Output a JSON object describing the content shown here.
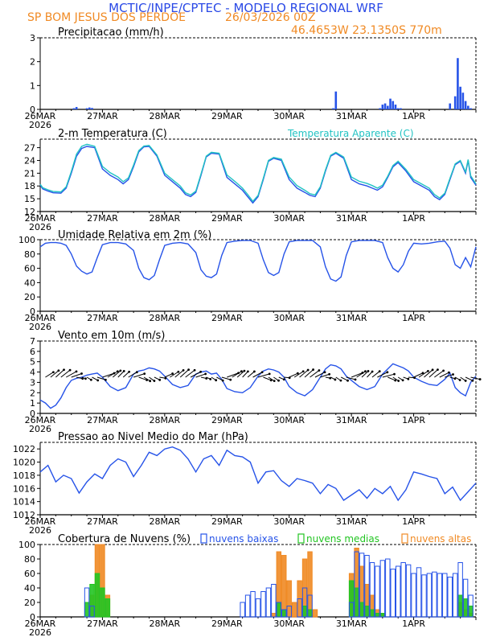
{
  "header": {
    "title": "MCTIC/INPE/CPTEC - MODELO REGIONAL WRF",
    "location": "SP BOM JESUS DOS PERDOE",
    "run": "26/03/2026 00Z",
    "coords": "46.4653W 23.1350S 770m"
  },
  "colors": {
    "title": "#2a49e6",
    "accent": "#f08a24",
    "series_main": "#2653e8",
    "series_cyan": "#22c3c3",
    "clouds_low": "#2653e8",
    "clouds_mid": "#22c422",
    "clouds_high": "#f08a24"
  },
  "x_axis": {
    "hours_total": 168,
    "labels": [
      {
        "hour": 0,
        "label": "26MAR",
        "year": "2026"
      },
      {
        "hour": 24,
        "label": "27MAR"
      },
      {
        "hour": 48,
        "label": "28MAR"
      },
      {
        "hour": 72,
        "label": "29MAR"
      },
      {
        "hour": 96,
        "label": "30MAR"
      },
      {
        "hour": 120,
        "label": "31MAR"
      },
      {
        "hour": 144,
        "label": "1APR"
      }
    ]
  },
  "chart_data": [
    {
      "id": "precip",
      "type": "bar",
      "title": "Precipitacao (mm/h)",
      "ylim": [
        0,
        3
      ],
      "yticks": [
        0,
        1,
        2,
        3
      ],
      "x": [
        13,
        14,
        18,
        19,
        20,
        113,
        114,
        131,
        132,
        133,
        134,
        135,
        136,
        137,
        138,
        139,
        158,
        160,
        161,
        162,
        163,
        164,
        165,
        166
      ],
      "values": [
        0.05,
        0.1,
        0.05,
        0.08,
        0.06,
        0.05,
        0.75,
        0.05,
        0.2,
        0.25,
        0.15,
        0.45,
        0.35,
        0.2,
        0.05,
        0.05,
        0.25,
        0.55,
        2.15,
        0.95,
        0.7,
        0.35,
        0.15,
        0.05
      ]
    },
    {
      "id": "temp",
      "type": "line",
      "title": "2-m Temperatura (C)",
      "legend": "Temperatura Aparente (C)",
      "ylim": [
        12,
        29
      ],
      "yticks": [
        12,
        15,
        18,
        21,
        24,
        27
      ],
      "x": [
        0,
        1,
        3,
        5,
        8,
        10,
        12,
        14,
        16,
        18,
        21,
        24,
        27,
        30,
        32,
        34,
        36,
        38,
        40,
        42,
        45,
        48,
        51,
        54,
        56,
        58,
        60,
        62,
        64,
        66,
        69,
        72,
        75,
        78,
        80,
        82,
        84,
        86,
        88,
        90,
        93,
        96,
        99,
        102,
        104,
        106,
        108,
        110,
        112,
        114,
        117,
        120,
        123,
        126,
        128,
        130,
        132,
        134,
        136,
        138,
        141,
        144,
        147,
        150,
        152,
        154,
        156,
        158,
        160,
        162,
        164,
        165,
        166,
        168
      ],
      "series": [
        {
          "name": "Temperatura (C)",
          "color_key": "series_main",
          "values": [
            18.2,
            17.3,
            16.8,
            16.4,
            16.3,
            17.5,
            21,
            25,
            26.8,
            27.3,
            27,
            22,
            20.5,
            19.5,
            18.5,
            19.5,
            22.5,
            26,
            27.2,
            27.3,
            25,
            20.5,
            19,
            17.5,
            16,
            15.5,
            16.5,
            20.5,
            24.8,
            25.7,
            25.5,
            20,
            18.5,
            17,
            15.5,
            14,
            15.5,
            19.5,
            23.8,
            24.5,
            24,
            19.5,
            17.5,
            16.5,
            15.8,
            15.5,
            17.5,
            21.5,
            25,
            25.7,
            24.5,
            19.5,
            18.5,
            18,
            17.5,
            17,
            17.8,
            20,
            22.5,
            23.5,
            21.5,
            19,
            18,
            17,
            15.5,
            14.8,
            16,
            19.5,
            23,
            23.8,
            21,
            24,
            20,
            18.2
          ]
        },
        {
          "name": "Temperatura Aparente (C)",
          "color_key": "series_cyan",
          "values": [
            18.4,
            17.6,
            17.1,
            16.7,
            16.6,
            17.8,
            21.4,
            25.5,
            27.3,
            27.8,
            27.3,
            22.6,
            21.1,
            20.1,
            19,
            19.9,
            22.9,
            26.3,
            27.4,
            27.5,
            25.3,
            21,
            19.5,
            18,
            16.4,
            15.9,
            16.8,
            20.8,
            25,
            25.9,
            25.7,
            20.6,
            19.1,
            17.5,
            16,
            14.4,
            15.8,
            19.8,
            24,
            24.7,
            24.3,
            20.1,
            18.1,
            17,
            16.2,
            15.9,
            17.8,
            21.8,
            25.2,
            25.9,
            24.8,
            20.1,
            19.1,
            18.6,
            18.1,
            17.5,
            18.2,
            20.3,
            22.8,
            23.8,
            21.9,
            19.5,
            18.5,
            17.5,
            16,
            15.2,
            16.3,
            19.8,
            23.2,
            24,
            21.3,
            24.2,
            20.4,
            18.5
          ]
        }
      ]
    },
    {
      "id": "rh",
      "type": "line",
      "title": "Umidade Relativa em 2m (%)",
      "ylim": [
        0,
        100
      ],
      "yticks": [
        0,
        20,
        40,
        60,
        80,
        100
      ],
      "x": [
        0,
        2,
        4,
        6,
        8,
        10,
        12,
        14,
        16,
        18,
        20,
        22,
        24,
        27,
        30,
        33,
        36,
        38,
        40,
        42,
        44,
        46,
        48,
        51,
        54,
        57,
        60,
        62,
        64,
        66,
        68,
        70,
        72,
        75,
        78,
        81,
        84,
        86,
        88,
        90,
        92,
        94,
        96,
        99,
        102,
        105,
        108,
        110,
        112,
        114,
        116,
        118,
        120,
        123,
        126,
        129,
        132,
        134,
        136,
        138,
        140,
        142,
        144,
        147,
        150,
        153,
        156,
        158,
        160,
        162,
        164,
        166,
        168
      ],
      "series": [
        {
          "name": "Umidade Relativa",
          "color_key": "series_main",
          "values": [
            90,
            95,
            96,
            96,
            95,
            92,
            80,
            63,
            56,
            52,
            55,
            75,
            93,
            96,
            96,
            94,
            85,
            60,
            47,
            44,
            50,
            72,
            92,
            95,
            96,
            94,
            82,
            58,
            49,
            47,
            52,
            78,
            96,
            98,
            99,
            99,
            95,
            72,
            54,
            50,
            54,
            80,
            97,
            99,
            99,
            99,
            90,
            62,
            45,
            42,
            48,
            78,
            97,
            99,
            99,
            99,
            96,
            75,
            60,
            55,
            65,
            84,
            95,
            94,
            95,
            97,
            98,
            88,
            65,
            60,
            75,
            62,
            90
          ]
        }
      ]
    },
    {
      "id": "wind",
      "type": "line",
      "title": "Vento em 10m (m/s)",
      "ylim": [
        0,
        7
      ],
      "yticks": [
        0,
        1,
        2,
        3,
        4,
        5,
        6,
        7
      ],
      "arrow_level": 3.5,
      "x": [
        0,
        2,
        4,
        6,
        8,
        10,
        12,
        14,
        16,
        18,
        20,
        22,
        24,
        27,
        30,
        33,
        36,
        38,
        40,
        42,
        44,
        46,
        48,
        51,
        54,
        57,
        60,
        62,
        64,
        66,
        68,
        70,
        72,
        75,
        78,
        81,
        84,
        86,
        88,
        90,
        92,
        94,
        96,
        99,
        102,
        105,
        108,
        110,
        112,
        114,
        116,
        118,
        120,
        123,
        126,
        129,
        132,
        134,
        136,
        138,
        140,
        142,
        144,
        147,
        150,
        153,
        156,
        158,
        160,
        162,
        164,
        166,
        168
      ],
      "series": [
        {
          "name": "Velocidade",
          "color_key": "series_main",
          "values": [
            1.3,
            1,
            0.5,
            0.8,
            1.5,
            2.5,
            3.2,
            3.4,
            3.5,
            3.7,
            3.8,
            3.9,
            3.5,
            2.6,
            2.2,
            2.5,
            3.8,
            4.1,
            4.2,
            4.4,
            4.3,
            4.1,
            3.6,
            2.8,
            2.5,
            2.7,
            3.8,
            4,
            4.1,
            3.8,
            3.9,
            3.3,
            2.4,
            2.1,
            2,
            2.5,
            3.6,
            4.1,
            4.3,
            4.2,
            4,
            3.5,
            2.6,
            2,
            1.7,
            2.3,
            3.5,
            4.3,
            4.7,
            4.6,
            4.3,
            3.6,
            3.2,
            2.6,
            2.3,
            2.6,
            3.8,
            4.3,
            4.8,
            4.6,
            4.4,
            4.1,
            3.5,
            3.1,
            2.8,
            2.7,
            3.3,
            3.9,
            2.5,
            2,
            1.7,
            3,
            3.6
          ]
        }
      ]
    },
    {
      "id": "mslp",
      "type": "line",
      "title": "Pressao ao Nivel Medio do Mar (hPa)",
      "ylim": [
        1012,
        1023
      ],
      "yticks": [
        1012,
        1014,
        1016,
        1018,
        1020,
        1022
      ],
      "x": [
        0,
        3,
        6,
        9,
        12,
        15,
        18,
        21,
        24,
        27,
        30,
        33,
        36,
        39,
        42,
        45,
        48,
        51,
        54,
        57,
        60,
        63,
        66,
        69,
        72,
        75,
        78,
        81,
        84,
        87,
        90,
        93,
        96,
        99,
        102,
        105,
        108,
        111,
        114,
        117,
        120,
        123,
        126,
        129,
        132,
        135,
        138,
        141,
        144,
        147,
        150,
        153,
        156,
        159,
        162,
        165,
        168
      ],
      "series": [
        {
          "name": "MSLP",
          "color_key": "series_main",
          "values": [
            1018.5,
            1019.5,
            1017,
            1018,
            1017.5,
            1015.3,
            1017,
            1018.2,
            1017.5,
            1019.5,
            1020.5,
            1020,
            1017.8,
            1019.5,
            1021.5,
            1021,
            1022,
            1022.3,
            1021.8,
            1020.5,
            1018.5,
            1020.5,
            1021,
            1019.5,
            1021.8,
            1021,
            1020.8,
            1020,
            1016.8,
            1018.5,
            1018.7,
            1017.2,
            1016.3,
            1017.5,
            1017.2,
            1016.8,
            1015.2,
            1016.6,
            1016,
            1014.2,
            1015,
            1015.8,
            1014.5,
            1016,
            1015.2,
            1016.3,
            1014.2,
            1015.8,
            1018.5,
            1018.2,
            1017.8,
            1017.5,
            1015.2,
            1016.2,
            1014.2,
            1015.5,
            1016.8
          ]
        }
      ]
    },
    {
      "id": "clouds",
      "type": "bar",
      "title": "Cobertura de Nuvens (%)",
      "legend": [
        "nuvens baixas",
        "nuvens medias",
        "nuvens altas"
      ],
      "ylim": [
        0,
        100
      ],
      "yticks": [
        0,
        20,
        40,
        60,
        80,
        100
      ],
      "x": [
        0,
        2,
        4,
        6,
        8,
        10,
        12,
        14,
        16,
        18,
        20,
        22,
        24,
        26,
        28,
        30,
        32,
        34,
        36,
        38,
        40,
        42,
        44,
        46,
        48,
        50,
        52,
        54,
        56,
        58,
        60,
        62,
        64,
        66,
        68,
        70,
        72,
        74,
        76,
        78,
        80,
        82,
        84,
        86,
        88,
        90,
        92,
        94,
        96,
        98,
        100,
        102,
        104,
        106,
        108,
        110,
        112,
        114,
        116,
        118,
        120,
        122,
        124,
        126,
        128,
        130,
        132,
        134,
        136,
        138,
        140,
        142,
        144,
        146,
        148,
        150,
        152,
        154,
        156,
        158,
        160,
        162,
        164,
        166
      ],
      "series": [
        {
          "name": "nuvens baixas",
          "color_key": "clouds_low",
          "values": [
            0,
            0,
            0,
            0,
            0,
            0,
            0,
            0,
            0,
            40,
            15,
            0,
            0,
            0,
            0,
            0,
            0,
            0,
            0,
            0,
            0,
            0,
            0,
            0,
            0,
            0,
            0,
            0,
            0,
            0,
            0,
            0,
            0,
            0,
            0,
            0,
            0,
            0,
            0,
            20,
            30,
            35,
            25,
            35,
            40,
            45,
            20,
            10,
            15,
            0,
            25,
            40,
            30,
            0,
            0,
            0,
            0,
            0,
            0,
            0,
            20,
            90,
            88,
            85,
            75,
            70,
            78,
            80,
            66,
            70,
            75,
            72,
            60,
            68,
            58,
            60,
            62,
            60,
            60,
            55,
            60,
            75,
            52,
            30
          ]
        },
        {
          "name": "nuvens medias",
          "color_key": "clouds_mid",
          "values": [
            0,
            0,
            0,
            0,
            0,
            0,
            0,
            0,
            0,
            20,
            45,
            60,
            40,
            25,
            0,
            0,
            0,
            0,
            0,
            0,
            0,
            0,
            0,
            0,
            0,
            0,
            0,
            0,
            0,
            0,
            0,
            0,
            0,
            0,
            0,
            0,
            0,
            0,
            0,
            0,
            0,
            0,
            0,
            0,
            0,
            0,
            20,
            10,
            0,
            0,
            0,
            15,
            10,
            0,
            0,
            0,
            0,
            0,
            0,
            0,
            50,
            40,
            20,
            15,
            10,
            5,
            5,
            0,
            0,
            0,
            0,
            0,
            0,
            0,
            0,
            0,
            0,
            0,
            0,
            0,
            0,
            30,
            25,
            15
          ]
        },
        {
          "name": "nuvens altas",
          "color_key": "clouds_high",
          "values": [
            0,
            0,
            0,
            0,
            0,
            0,
            0,
            0,
            0,
            0,
            30,
            100,
            100,
            30,
            0,
            0,
            0,
            0,
            0,
            0,
            0,
            0,
            0,
            0,
            0,
            0,
            0,
            0,
            0,
            0,
            0,
            0,
            0,
            0,
            0,
            0,
            0,
            0,
            0,
            0,
            0,
            0,
            0,
            0,
            0,
            5,
            90,
            85,
            50,
            20,
            50,
            80,
            90,
            10,
            0,
            0,
            0,
            0,
            0,
            0,
            60,
            95,
            70,
            45,
            30,
            10,
            5,
            0,
            0,
            0,
            0,
            0,
            0,
            0,
            0,
            0,
            0,
            0,
            0,
            0,
            0,
            20,
            10,
            5
          ]
        }
      ]
    }
  ]
}
